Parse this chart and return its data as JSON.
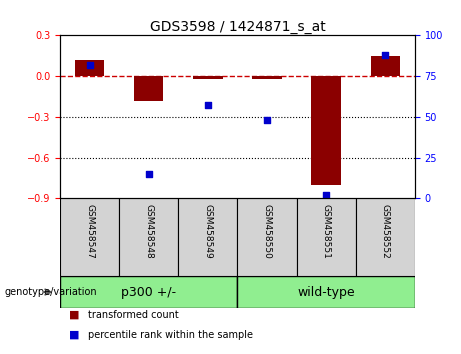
{
  "title": "GDS3598 / 1424871_s_at",
  "samples": [
    "GSM458547",
    "GSM458548",
    "GSM458549",
    "GSM458550",
    "GSM458551",
    "GSM458552"
  ],
  "red_values": [
    0.12,
    -0.18,
    -0.02,
    -0.02,
    -0.8,
    0.15
  ],
  "blue_values_pct": [
    82,
    15,
    57,
    48,
    2,
    88
  ],
  "ylim_left": [
    -0.9,
    0.3
  ],
  "ylim_right": [
    0,
    100
  ],
  "yticks_left": [
    -0.9,
    -0.6,
    -0.3,
    0.0,
    0.3
  ],
  "yticks_right": [
    0,
    25,
    50,
    75,
    100
  ],
  "group1_label": "p300 +/-",
  "group2_label": "wild-type",
  "group_color": "#90EE90",
  "label_bg_color": "#D3D3D3",
  "bar_color": "#8B0000",
  "dot_color": "#0000CC",
  "legend_bar_label": "transformed count",
  "legend_dot_label": "percentile rank within the sample",
  "hline_color": "#CC0000",
  "dotline_color": "black",
  "bar_width": 0.5
}
